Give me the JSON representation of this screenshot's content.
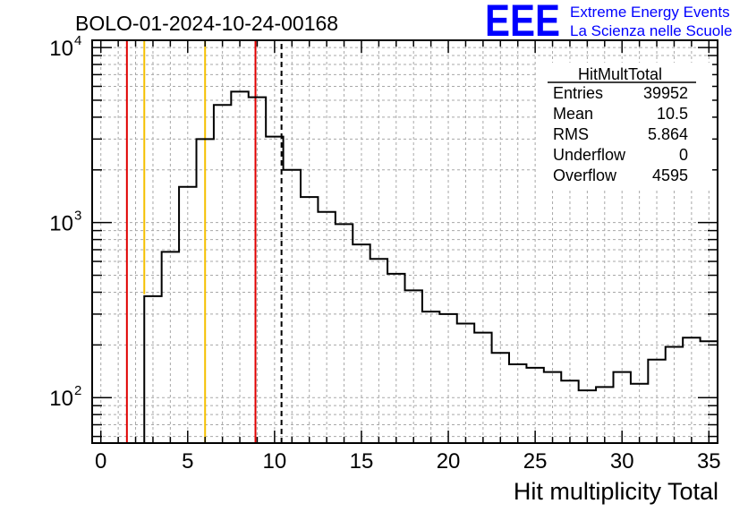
{
  "title": "BOLO-01-2024-10-24-00168",
  "logo": {
    "mark": "EEE",
    "line1": "Extreme Energy Events",
    "line2": "La Scienza nelle Scuole",
    "color": "#0000ff"
  },
  "stats_box": {
    "title": "HitMultTotal",
    "rows": [
      {
        "label": "Entries",
        "value": "39952"
      },
      {
        "label": "Mean",
        "value": "10.5"
      },
      {
        "label": "RMS",
        "value": "5.864"
      },
      {
        "label": "Underflow",
        "value": "0"
      },
      {
        "label": "Overflow",
        "value": "4595"
      }
    ]
  },
  "chart_data": {
    "type": "histogram",
    "xlabel": "Hit multiplicity Total",
    "ylabel": "",
    "xlim": [
      -0.5,
      35.5
    ],
    "ylim": [
      55,
      11000
    ],
    "yscale": "log",
    "grid": true,
    "x_ticks": [
      0,
      5,
      10,
      15,
      20,
      25,
      30,
      35
    ],
    "y_ticks": [
      {
        "exp": 2,
        "value": 100
      },
      {
        "exp": 3,
        "value": 1000
      },
      {
        "exp": 4,
        "value": 10000
      }
    ],
    "bin_edges": [
      2.5,
      3.5,
      4.5,
      5.5,
      6.5,
      7.5,
      8.5,
      9.5,
      10.5,
      11.5,
      12.5,
      13.5,
      14.5,
      15.5,
      16.5,
      17.5,
      18.5,
      19.5,
      20.5,
      21.5,
      22.5,
      23.5,
      24.5,
      25.5,
      26.5,
      27.5,
      28.5,
      29.5,
      30.5,
      31.5,
      32.5,
      33.5,
      34.5,
      35.5
    ],
    "values": [
      380,
      680,
      1600,
      3000,
      4700,
      5600,
      5200,
      3100,
      2000,
      1400,
      1150,
      980,
      750,
      620,
      510,
      410,
      310,
      300,
      265,
      235,
      180,
      155,
      148,
      140,
      125,
      110,
      115,
      140,
      120,
      165,
      195,
      220,
      210
    ],
    "vertical_lines": [
      {
        "x": 1.5,
        "color": "#e00000",
        "style": "solid"
      },
      {
        "x": 2.5,
        "color": "#f5c000",
        "style": "solid",
        "ymin": 390
      },
      {
        "x": 6.0,
        "color": "#f5c000",
        "style": "solid"
      },
      {
        "x": 8.9,
        "color": "#e00000",
        "style": "solid"
      },
      {
        "x": 10.4,
        "color": "#000000",
        "style": "dashed"
      }
    ]
  }
}
